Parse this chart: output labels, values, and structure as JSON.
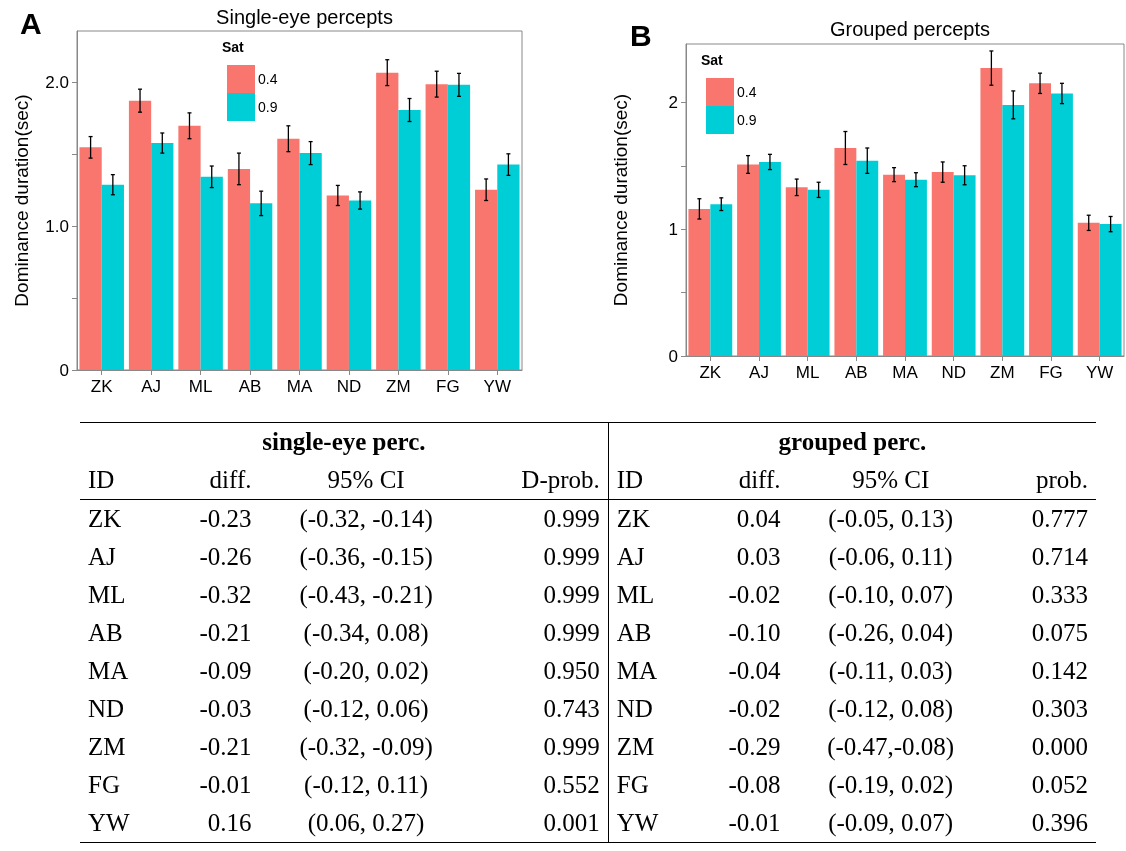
{
  "chart_data": [
    {
      "type": "bar",
      "title": "Single-eye percepts",
      "ylabel": "Dominance duration(sec)",
      "legend_title": "Sat",
      "legend": "top",
      "grid": false,
      "annotations": [
        "A"
      ],
      "categories": [
        "ZK",
        "AJ",
        "ML",
        "AB",
        "MA",
        "ND",
        "ZM",
        "FG",
        "YW"
      ],
      "ylim": [
        0,
        2.36
      ],
      "yticks": [
        0,
        {
          "value": 0.5,
          "label": null
        },
        {
          "value": 1,
          "label": "1.0"
        },
        {
          "value": 1.5,
          "label": null
        },
        {
          "value": 2,
          "label": "2.0"
        }
      ],
      "series": [
        {
          "name": "0.4",
          "color": "#f8766d",
          "values": [
            1.55,
            1.875,
            1.7,
            1.4,
            1.61,
            1.215,
            2.07,
            1.99,
            1.255
          ],
          "errors": [
            0.075,
            0.08,
            0.09,
            0.11,
            0.09,
            0.07,
            0.09,
            0.09,
            0.075
          ]
        },
        {
          "name": "0.9",
          "color": "#00ced6",
          "values": [
            1.29,
            1.58,
            1.345,
            1.16,
            1.51,
            1.18,
            1.81,
            1.985,
            1.43
          ],
          "errors": [
            0.07,
            0.07,
            0.075,
            0.085,
            0.08,
            0.06,
            0.08,
            0.08,
            0.075
          ]
        }
      ]
    },
    {
      "type": "bar",
      "title": "Grouped percepts",
      "ylabel": "Dominance duration(sec)",
      "legend_title": "Sat",
      "legend": "top left",
      "grid": false,
      "annotations": [
        "B"
      ],
      "categories": [
        "ZK",
        "AJ",
        "ML",
        "AB",
        "MA",
        "ND",
        "ZM",
        "FG",
        "YW"
      ],
      "ylim": [
        0,
        2.46
      ],
      "yticks": [
        0,
        {
          "value": 0.5,
          "label": null
        },
        1,
        {
          "value": 1.5,
          "label": null
        },
        2
      ],
      "series": [
        {
          "name": "0.4",
          "color": "#f8766d",
          "values": [
            1.16,
            1.51,
            1.33,
            1.64,
            1.43,
            1.45,
            2.27,
            2.15,
            1.05
          ],
          "errors": [
            0.08,
            0.07,
            0.065,
            0.13,
            0.055,
            0.08,
            0.135,
            0.08,
            0.06
          ]
        },
        {
          "name": "0.9",
          "color": "#00ced6",
          "values": [
            1.197,
            1.53,
            1.31,
            1.54,
            1.39,
            1.425,
            1.98,
            2.07,
            1.04
          ],
          "errors": [
            0.05,
            0.06,
            0.06,
            0.1,
            0.055,
            0.075,
            0.11,
            0.08,
            0.06
          ]
        }
      ]
    },
    {
      "type": "other",
      "annotations": [
        "single-eye perc.",
        "grouped perc.",
        "ID",
        "diff.",
        "95% CI",
        "D-prob.",
        "ID",
        "diff.",
        "95% CI",
        "prob.",
        "ZK",
        "-0.23",
        "(-0.32, -0.14)",
        "0.999",
        "ZK",
        "0.04",
        "(-0.05, 0.13)",
        "0.777",
        "AJ",
        "-0.26",
        "(-0.36, -0.15)",
        "0.999",
        "AJ",
        "0.03",
        "(-0.06, 0.11)",
        "0.714",
        "ML",
        "-0.32",
        "(-0.43, -0.21)",
        "0.999",
        "ML",
        "-0.02",
        "(-0.10, 0.07)",
        "0.333",
        "AB",
        "-0.21",
        "(-0.34, 0.08)",
        "0.999",
        "AB",
        "-0.10",
        "(-0.26, 0.04)",
        "0.075",
        "MA",
        "-0.09",
        "(-0.20, 0.02)",
        "0.950",
        "MA",
        "-0.04",
        "(-0.11, 0.03)",
        "0.142",
        "ND",
        "-0.03",
        "(-0.12, 0.06)",
        "0.743",
        "ND",
        "-0.02",
        "(-0.12, 0.08)",
        "0.303",
        "ZM",
        "-0.21",
        "(-0.32, -0.09)",
        "0.999",
        "ZM",
        "-0.29",
        "(-0.47,-0.08)",
        "0.000",
        "FG",
        "-0.01",
        "(-0.12, 0.11)",
        "0.552",
        "FG",
        "-0.08",
        "(-0.19, 0.02)",
        "0.052",
        "YW",
        "0.16",
        "(0.06, 0.27)",
        "0.001",
        "YW",
        "-0.01",
        "(-0.09, 0.07)",
        "0.396"
      ]
    }
  ]
}
